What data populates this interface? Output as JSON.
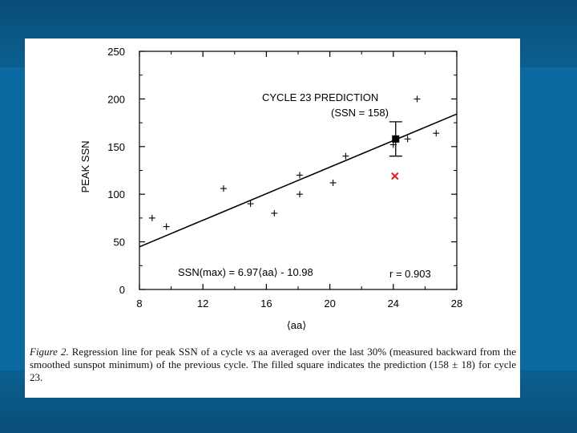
{
  "chart_data": {
    "type": "scatter",
    "xlabel": "⟨aa⟩",
    "ylabel": "PEAK SSN",
    "xlim": [
      8,
      28
    ],
    "ylim": [
      0,
      250
    ],
    "x_ticks": [
      8,
      12,
      16,
      20,
      24,
      28
    ],
    "y_ticks": [
      0,
      50,
      100,
      150,
      200,
      250
    ],
    "series": [
      {
        "type": "scatter",
        "marker": "plus",
        "points": [
          {
            "x": 8.8,
            "y": 75
          },
          {
            "x": 9.7,
            "y": 66
          },
          {
            "x": 13.3,
            "y": 106
          },
          {
            "x": 15.0,
            "y": 90
          },
          {
            "x": 16.5,
            "y": 80
          },
          {
            "x": 18.1,
            "y": 120
          },
          {
            "x": 18.1,
            "y": 100
          },
          {
            "x": 20.2,
            "y": 112
          },
          {
            "x": 21.0,
            "y": 140
          },
          {
            "x": 24.0,
            "y": 152
          },
          {
            "x": 24.9,
            "y": 158
          },
          {
            "x": 25.5,
            "y": 200
          },
          {
            "x": 26.7,
            "y": 164
          }
        ]
      },
      {
        "type": "line",
        "style": "regression",
        "slope": 6.97,
        "intercept": -10.98,
        "x_range": [
          8,
          28
        ]
      },
      {
        "type": "point",
        "marker": "filled-square",
        "x": 24.15,
        "y": 158,
        "error": 18
      },
      {
        "type": "point",
        "marker": "x",
        "color": "#e0201b",
        "x": 24.1,
        "y": 119
      }
    ],
    "annotations": {
      "prediction_line1": "CYCLE 23 PREDICTION",
      "prediction_line2": "(SSN = 158)",
      "equation": "SSN(max) = 6.97⟨aa⟩ - 10.98",
      "r_value": "r = 0.903"
    },
    "grid": false
  },
  "caption": {
    "label": "Figure 2.",
    "text": "Regression line for peak SSN of a cycle vs aa averaged over the last 30% (measured backward from the smoothed sunspot minimum) of the previous cycle. The filled square indicates the prediction (158 ± 18) for cycle 23."
  }
}
